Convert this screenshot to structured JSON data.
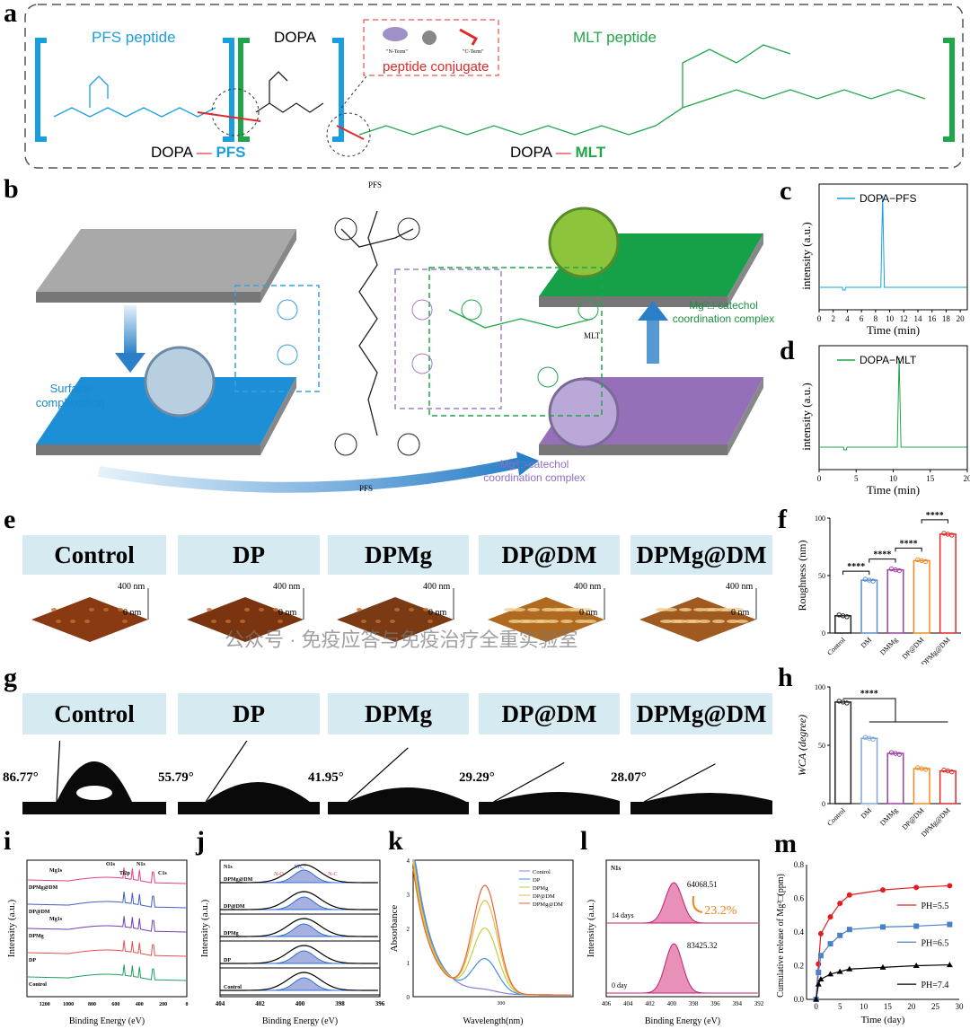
{
  "panels": {
    "a": "a",
    "b": "b",
    "c": "c",
    "d": "d",
    "e": "e",
    "f": "f",
    "g": "g",
    "h": "h",
    "i": "i",
    "j": "j",
    "k": "k",
    "l": "l",
    "m": "m"
  },
  "panel_a": {
    "pfs_label": "PFS peptide",
    "dopa_label": "DOPA",
    "mlt_label": "MLT peptide",
    "conjugate_label": "peptide conjugate",
    "n_term": "\"N-Term\"",
    "c_term": "\"C-Term\"",
    "dopa_pfs_left": "DOPA",
    "dopa_pfs_right": "PFS",
    "dopa_mlt_left": "DOPA",
    "dopa_mlt_right": "MLT",
    "colors": {
      "pfs": "#1a9ee0",
      "mlt": "#1fa64a",
      "red": "#e02a2a"
    }
  },
  "panel_b": {
    "surface_label": "Surface complexation",
    "purple_label": "Mg²□-catechol coordination complex",
    "green_label": "Mg²□-catechol coordination complex",
    "pfs_top": "PFS",
    "pfs_bottom": "PFS",
    "mlt": "MLT"
  },
  "chart_data": [
    {
      "id": "c",
      "type": "line",
      "legend": [
        "DOPA−PFS"
      ],
      "xlabel": "Time (min)",
      "ylabel": "intensity (a.u.)",
      "xlim": [
        0,
        21
      ],
      "xticks": [
        0,
        2,
        4,
        6,
        8,
        10,
        12,
        14,
        16,
        18,
        20
      ],
      "peak_x": 9.0,
      "color": "#1a9ee0"
    },
    {
      "id": "d",
      "type": "line",
      "legend": [
        "DOPA−MLT"
      ],
      "xlabel": "Time (min)",
      "ylabel": "intensity (a.u.)",
      "xlim": [
        0,
        20
      ],
      "xticks": [
        0,
        5,
        10,
        15,
        20
      ],
      "peak_x": 10.8,
      "color": "#1fa64a"
    },
    {
      "id": "f",
      "type": "bar",
      "categories": [
        "Control",
        "DM",
        "DMMg",
        "DP@DM",
        "DPMg@DM"
      ],
      "values": [
        15,
        46,
        55,
        63,
        86
      ],
      "ylabel": "Roughness (nm)",
      "ylim": [
        0,
        100
      ],
      "yticks": [
        0,
        50,
        100
      ],
      "significance": "****",
      "colors": [
        "#222222",
        "#5b8fd0",
        "#a040a8",
        "#f08a20",
        "#e02a2a"
      ]
    },
    {
      "id": "h",
      "type": "bar",
      "categories": [
        "Control",
        "DM",
        "DMMg",
        "DP@DM",
        "DPMg@DM"
      ],
      "values": [
        87,
        56,
        43,
        30,
        28
      ],
      "ylabel": "WCA (degree)",
      "ylim": [
        0,
        100
      ],
      "yticks": [
        0,
        50,
        100
      ],
      "significance": "****",
      "colors": [
        "#222222",
        "#7fa8d8",
        "#a040a8",
        "#f08a20",
        "#e02a2a"
      ]
    },
    {
      "id": "i",
      "type": "line",
      "xlabel": "Binding Energy (eV)",
      "ylabel": "Intensity (a.u.)",
      "xticks": [
        1200,
        1000,
        800,
        600,
        400,
        200,
        0
      ],
      "series": [
        "DPMg@DM",
        "DP@DM",
        "DPMg",
        "DP",
        "Control"
      ],
      "colors": [
        "#e0408a",
        "#4060c0",
        "#7040b0",
        "#e85050",
        "#20a060"
      ],
      "annotations": [
        "Mg1s",
        "Mg1s",
        "O1s",
        "Ti2p",
        "N1s",
        "C1s"
      ]
    },
    {
      "id": "j",
      "type": "area",
      "xlabel": "Binding Energy (eV)",
      "ylabel": "Intensity (a.u.)",
      "xticks": [
        404,
        402,
        400,
        398,
        396
      ],
      "series": [
        "DPMg@DM",
        "DP@DM",
        "DPMg",
        "DP",
        "Control"
      ],
      "annotations": [
        "N1s",
        "NH₂⁺",
        "N-O",
        "N-C"
      ]
    },
    {
      "id": "k",
      "type": "line",
      "xlabel": "Wavelength(nm)",
      "ylabel": "Absorbance",
      "xticks": [
        300
      ],
      "ylim": [
        0,
        4
      ],
      "yticks": [
        0,
        1,
        2,
        3,
        4
      ],
      "series": [
        {
          "name": "Control",
          "color": "#8080e0",
          "peak": 0.1
        },
        {
          "name": "DP",
          "color": "#4090e0",
          "peak": 1.1
        },
        {
          "name": "DPMg",
          "color": "#c0d040",
          "peak": 2.1
        },
        {
          "name": "DP@DM",
          "color": "#e0c040",
          "peak": 3.0
        },
        {
          "name": "DPMg@DM",
          "color": "#f06030",
          "peak": 3.5
        }
      ]
    },
    {
      "id": "l",
      "type": "area",
      "xlabel": "Binding Energy (eV)",
      "ylabel": "Intensity (a.u.)",
      "xticks": [
        406,
        404,
        402,
        400,
        398,
        396,
        394,
        392
      ],
      "title": "N1s",
      "series": [
        {
          "name": "14 days",
          "peak_value": "64068.51"
        },
        {
          "name": "0 day",
          "peak_value": "83425.32"
        }
      ],
      "decrease": "23.2%"
    },
    {
      "id": "m",
      "type": "line",
      "xlabel": "Time (day)",
      "ylabel": "Cumulative release of Mg²□(ppm)",
      "xlim": [
        -2,
        30
      ],
      "ylim": [
        0,
        0.8
      ],
      "xticks": [
        0,
        5,
        10,
        15,
        20,
        25,
        30
      ],
      "yticks": [
        0.0,
        0.2,
        0.4,
        0.6,
        0.8
      ],
      "x": [
        0,
        0.5,
        1,
        3,
        5,
        7,
        14,
        21,
        28
      ],
      "series": [
        {
          "name": "PH=5.5",
          "color": "#e02020",
          "marker": "circle",
          "values": [
            0,
            0.21,
            0.39,
            0.49,
            0.57,
            0.62,
            0.65,
            0.665,
            0.675
          ]
        },
        {
          "name": "PH=6.5",
          "color": "#4a80c8",
          "marker": "square",
          "values": [
            0,
            0.16,
            0.26,
            0.33,
            0.38,
            0.415,
            0.43,
            0.435,
            0.445
          ]
        },
        {
          "name": "PH=7.4",
          "color": "#000000",
          "marker": "triangle",
          "values": [
            0,
            0.09,
            0.12,
            0.15,
            0.165,
            0.18,
            0.19,
            0.2,
            0.205
          ]
        }
      ]
    }
  ],
  "panel_e": {
    "labels": [
      "Control",
      "DP",
      "DPMg",
      "DP@DM",
      "DPMg@DM"
    ],
    "scale_top": "400 nm",
    "scale_bottom": "0 nm"
  },
  "panel_g": {
    "labels": [
      "Control",
      "DP",
      "DPMg",
      "DP@DM",
      "DPMg@DM"
    ],
    "angles": [
      "86.77°",
      "55.79°",
      "41.95°",
      "29.29°",
      "28.07°"
    ]
  },
  "watermark": "公众号 · 免疫应答与免疫治疗全重实验室"
}
